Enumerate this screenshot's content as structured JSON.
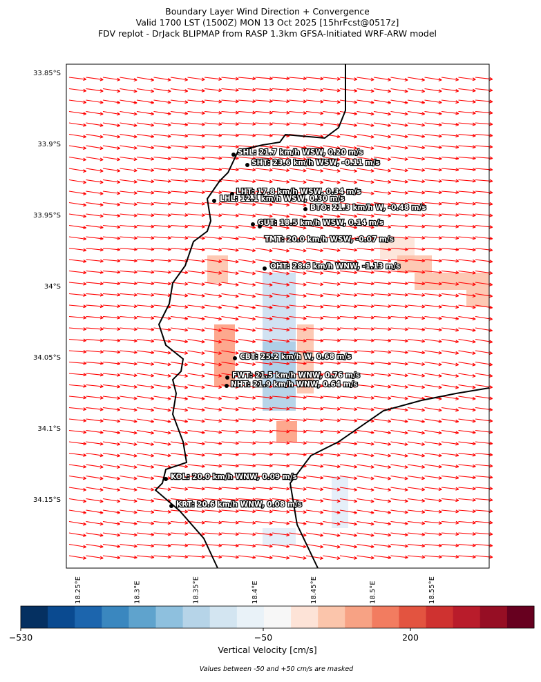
{
  "title": [
    "Boundary Layer Wind Direction + Convergence",
    "Valid 1700 LST (1500Z) MON 13 Oct 2025 [15hrFcst@0517z]",
    "FDV replot - DrJack BLIPMAP from RASP 1.3km GFSA-Initiated WRF-ARW model"
  ],
  "y_ticks": [
    "33.85°S",
    "33.9°S",
    "33.95°S",
    "34°S",
    "34.05°S",
    "34.1°S",
    "34.15°S"
  ],
  "x_ticks": [
    "18.25°E",
    "18.3°E",
    "18.35°E",
    "18.4°E",
    "18.45°E",
    "18.5°E",
    "18.55°E"
  ],
  "stations": [
    "SHL: 21.7 km/h WSW, 0.20 m/s",
    "SHT: 23.6 km/h WSW, -0.11 m/s",
    "LHT: 17.8 km/h WSW, 0.34 m/s",
    "LHL: 12.1 km/h WSW, 0.30 m/s",
    "BTO: 21.3 km/h W, -0.48 m/s",
    "GUT: 18.5 km/h WSW, 0.14 m/s",
    "TMT: 20.0 km/h WSW, -0.07 m/s",
    "OHT: 28.6 km/h WNW, -1.13 m/s",
    "CBT: 25.2 km/h W, 0.68 m/s",
    "FWT: 21.5 km/h WNW, 0.76 m/s",
    "NHT: 21.9 km/h WNW, 0.64 m/s",
    "KOL: 20.0 km/h WNW, 0.09 m/s",
    "KRT: 20.6 km/h WNW, 0.08 m/s"
  ],
  "colorbar": {
    "label": "Vertical Velocity [cm/s]",
    "ticks": [
      "−530",
      "−50",
      "200"
    ]
  },
  "note": "Values between -50 and +50 cm/s are masked"
}
